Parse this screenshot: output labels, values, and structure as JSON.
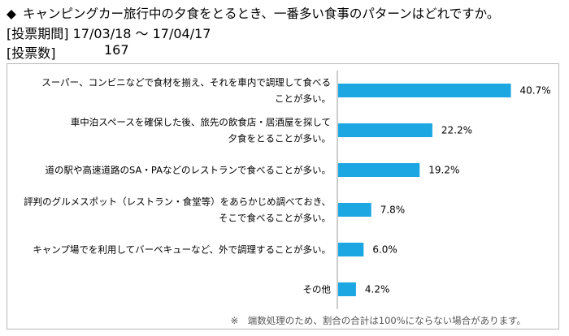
{
  "header": {
    "title_mark": "◆",
    "title": "キャンピングカー旅行中の夕食をとるとき、一番多い食事のパターンはどれですか。",
    "period_label": "[投票期間]",
    "period_value": "17/03/18 ～ 17/04/17",
    "votes_label": "[投票数]",
    "votes_value": "167"
  },
  "note": "※　端数処理のため、割合の合計は100%にならない場合があります。",
  "colors": {
    "bar": "#1ca7e3",
    "frame": "#b9b9b9",
    "axis": "#9a9a9a"
  },
  "chart_data": {
    "type": "bar",
    "orientation": "horizontal",
    "categories": [
      [
        "スーパー、コンビニなどで食材を揃え、それを車内で調理して食べる",
        "ことが多い。"
      ],
      [
        "車中泊スペースを確保した後、旅先の飲食店・居酒屋を探して",
        "夕食をとることが多い。"
      ],
      [
        "道の駅や高速道路のSA・PAなどのレストランで食べることが多い。"
      ],
      [
        "評判のグルメスポット（レストラン・食堂等）をあらかじめ調べておき、",
        "そこで食べることが多い。"
      ],
      [
        "キャンプ場でを利用してバーベキューなど、外で調理することが多い。"
      ],
      [
        "その他"
      ]
    ],
    "values": [
      40.7,
      22.2,
      19.2,
      7.8,
      6.0,
      4.2
    ],
    "value_labels": [
      "40.7%",
      "22.2%",
      "19.2%",
      "7.8%",
      "6.0%",
      "4.2%"
    ],
    "unit": "%",
    "xlim": [
      0,
      45
    ],
    "grid": false,
    "legend": "none"
  }
}
